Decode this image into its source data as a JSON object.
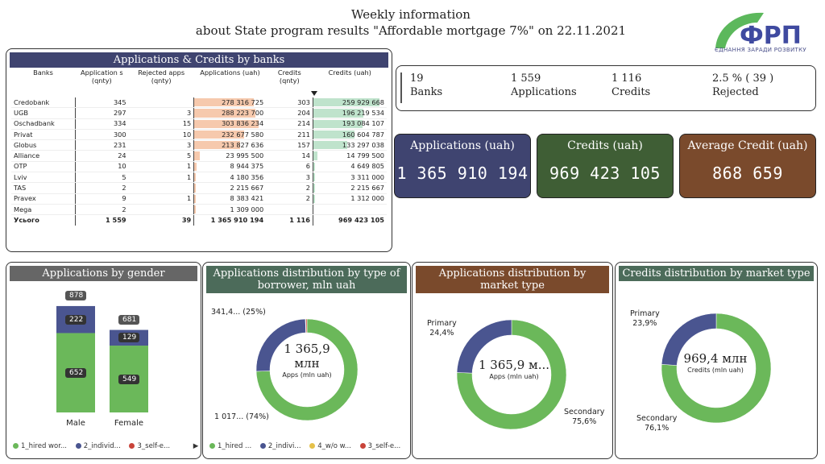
{
  "header": {
    "title_line1": "Weekly information",
    "title_line2": "about State program results \"Affordable mortgage 7%\" on  22.11.2021"
  },
  "logo": {
    "text": "ФРП",
    "subtitle": "ЄДНАННЯ ЗАРАДИ РОЗВИТКУ",
    "icon": "frp-logo-icon",
    "colors": [
      "#3f4aa0",
      "#5cb85c"
    ]
  },
  "table": {
    "title": "Applications & Credits by banks",
    "columns": [
      "Banks",
      "Application s (qnty)",
      "Rejected apps (qnty)",
      "Applications (uah)",
      "Credits (qnty)",
      "Credits (uah)"
    ],
    "sort_icon": "sort-desc-icon",
    "rows": [
      {
        "bank": "Credobank",
        "apps": "345",
        "rejected": "",
        "apps_uah": "278 316 725",
        "apps_uah_frac": 0.916,
        "credits": "303",
        "credits_uah": "259 929 668",
        "credits_uah_frac": 1.0
      },
      {
        "bank": "UGB",
        "apps": "297",
        "rejected": "3",
        "apps_uah": "288 223 700",
        "apps_uah_frac": 0.949,
        "credits": "204",
        "credits_uah": "196 219 534",
        "credits_uah_frac": 0.755
      },
      {
        "bank": "Oschadbank",
        "apps": "334",
        "rejected": "15",
        "apps_uah": "303 836 234",
        "apps_uah_frac": 1.0,
        "credits": "214",
        "credits_uah": "193 084 107",
        "credits_uah_frac": 0.743
      },
      {
        "bank": "Privat",
        "apps": "300",
        "rejected": "10",
        "apps_uah": "232 677 580",
        "apps_uah_frac": 0.766,
        "credits": "211",
        "credits_uah": "160 604 787",
        "credits_uah_frac": 0.618
      },
      {
        "bank": "Globus",
        "apps": "231",
        "rejected": "3",
        "apps_uah": "213 827 636",
        "apps_uah_frac": 0.704,
        "credits": "157",
        "credits_uah": "133 297 038",
        "credits_uah_frac": 0.513
      },
      {
        "bank": "Alliance",
        "apps": "24",
        "rejected": "5",
        "apps_uah": "23 995 500",
        "apps_uah_frac": 0.079,
        "credits": "14",
        "credits_uah": "14 799 500",
        "credits_uah_frac": 0.057
      },
      {
        "bank": "OTP",
        "apps": "10",
        "rejected": "1",
        "apps_uah": "8 944 375",
        "apps_uah_frac": 0.029,
        "credits": "6",
        "credits_uah": "4 649 805",
        "credits_uah_frac": 0.018
      },
      {
        "bank": "Lviv",
        "apps": "5",
        "rejected": "1",
        "apps_uah": "4 180 356",
        "apps_uah_frac": 0.014,
        "credits": "3",
        "credits_uah": "3 311 000",
        "credits_uah_frac": 0.013
      },
      {
        "bank": "TAS",
        "apps": "2",
        "rejected": "",
        "apps_uah": "2 215 667",
        "apps_uah_frac": 0.007,
        "credits": "2",
        "credits_uah": "2 215 667",
        "credits_uah_frac": 0.009
      },
      {
        "bank": "Pravex",
        "apps": "9",
        "rejected": "1",
        "apps_uah": "8 383 421",
        "apps_uah_frac": 0.028,
        "credits": "2",
        "credits_uah": "1 312 000",
        "credits_uah_frac": 0.005
      },
      {
        "bank": "Mega",
        "apps": "2",
        "rejected": "",
        "apps_uah": "1 309 000",
        "apps_uah_frac": 0.004,
        "credits": "",
        "credits_uah": "",
        "credits_uah_frac": 0
      }
    ],
    "total": {
      "bank": "Усього",
      "apps": "1 559",
      "rejected": "39",
      "apps_uah": "1 365 910 194",
      "credits": "1 116",
      "credits_uah": "969 423 105"
    },
    "colors": {
      "header": "#3f4470",
      "apps_bar": "#f6c9ad",
      "credits_bar": "#bfe3cc"
    }
  },
  "kpis": [
    {
      "value": "19",
      "label": "Banks"
    },
    {
      "value": "1 559",
      "label": "Applications"
    },
    {
      "value": "1 116",
      "label": "Credits"
    },
    {
      "value": "2.5 % ( 39 )",
      "label": "Rejected"
    }
  ],
  "cards": [
    {
      "title": "Applications (uah)",
      "value": "1 365 910 194",
      "color": "#3f4470"
    },
    {
      "title": "Credits (uah)",
      "value": "969 423 105",
      "color": "#3f5e35"
    },
    {
      "title": "Average Credit (uah)",
      "value": "868 659",
      "color": "#7a4a2c"
    }
  ],
  "chart_data": [
    {
      "type": "bar",
      "title": "Applications by gender",
      "categories": [
        "Male",
        "Female"
      ],
      "series": [
        {
          "name": "1_hired wor...",
          "values": [
            652,
            549
          ],
          "color": "#6bb85a"
        },
        {
          "name": "2_individ...",
          "values": [
            222,
            129
          ],
          "color": "#4a5590"
        },
        {
          "name": "3_self-e...",
          "values": [
            null,
            null
          ],
          "color": "#c9443a"
        }
      ],
      "totals": [
        878,
        681
      ],
      "ylim": [
        0,
        900
      ],
      "legend": "bottom",
      "legend_arrow_icon": "legend-next-icon",
      "header_color": "#666666"
    },
    {
      "type": "pie",
      "title": "Applications distribution by type of borrower, mln uah",
      "slices": [
        {
          "name": "1_hired ...",
          "value": 1017.6,
          "fraction": 0.745,
          "label": "1 017... (74%)",
          "color": "#6bb85a"
        },
        {
          "name": "2_indivi...",
          "value": 341.4,
          "fraction": 0.25,
          "label": "341,4... (25%)",
          "color": "#4a5590"
        },
        {
          "name": "4_w/o w...",
          "value": 2.0,
          "fraction": 0.0015,
          "label": "",
          "color": "#e5c14a"
        },
        {
          "name": "3_self-e...",
          "value": 4.9,
          "fraction": 0.0035,
          "label": "",
          "color": "#c9443a"
        }
      ],
      "center_value": "1 365,9",
      "center_unit": "млн",
      "center_label": "Apps (mln uah)",
      "legend": "bottom",
      "header_color": "#4c6b5a"
    },
    {
      "type": "pie",
      "title": "Applications distribution by market type",
      "slices": [
        {
          "name": "Secondary",
          "fraction": 0.756,
          "label": "75,6%",
          "color": "#6bb85a"
        },
        {
          "name": "Primary",
          "fraction": 0.244,
          "label": "24,4%",
          "color": "#4a5590"
        }
      ],
      "center_value": "1 365,9 м...",
      "center_label": "Apps (mln uah)",
      "header_color": "#7a4a2c"
    },
    {
      "type": "pie",
      "title": "Credits distribution by market type",
      "slices": [
        {
          "name": "Secondary",
          "fraction": 0.761,
          "label": "76,1%",
          "color": "#6bb85a"
        },
        {
          "name": "Primary",
          "fraction": 0.239,
          "label": "23,9%",
          "color": "#4a5590"
        }
      ],
      "center_value": "969,4 млн",
      "center_label": "Credits (mln uah)",
      "header_color": "#4c6b5a"
    }
  ]
}
